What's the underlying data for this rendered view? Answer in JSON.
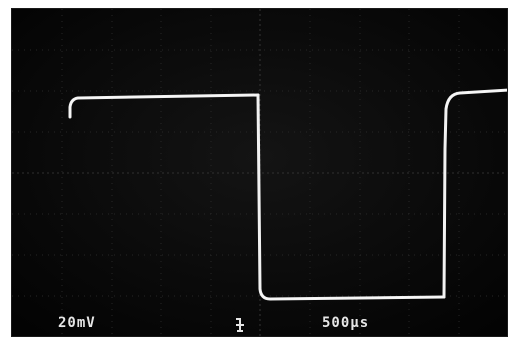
{
  "readouts": {
    "volts_per_div": "20mV",
    "time_per_div": "500µs"
  },
  "colors": {
    "screen": "#050505",
    "trace": "#f2f2f2",
    "graticule": "#2b2b2b",
    "readout": "#e6e6e6"
  },
  "icons": {
    "ground_marker": "trigger-ground-icon"
  },
  "waveform": {
    "type": "square-wave",
    "levels": [
      "high",
      "low",
      "high"
    ]
  }
}
